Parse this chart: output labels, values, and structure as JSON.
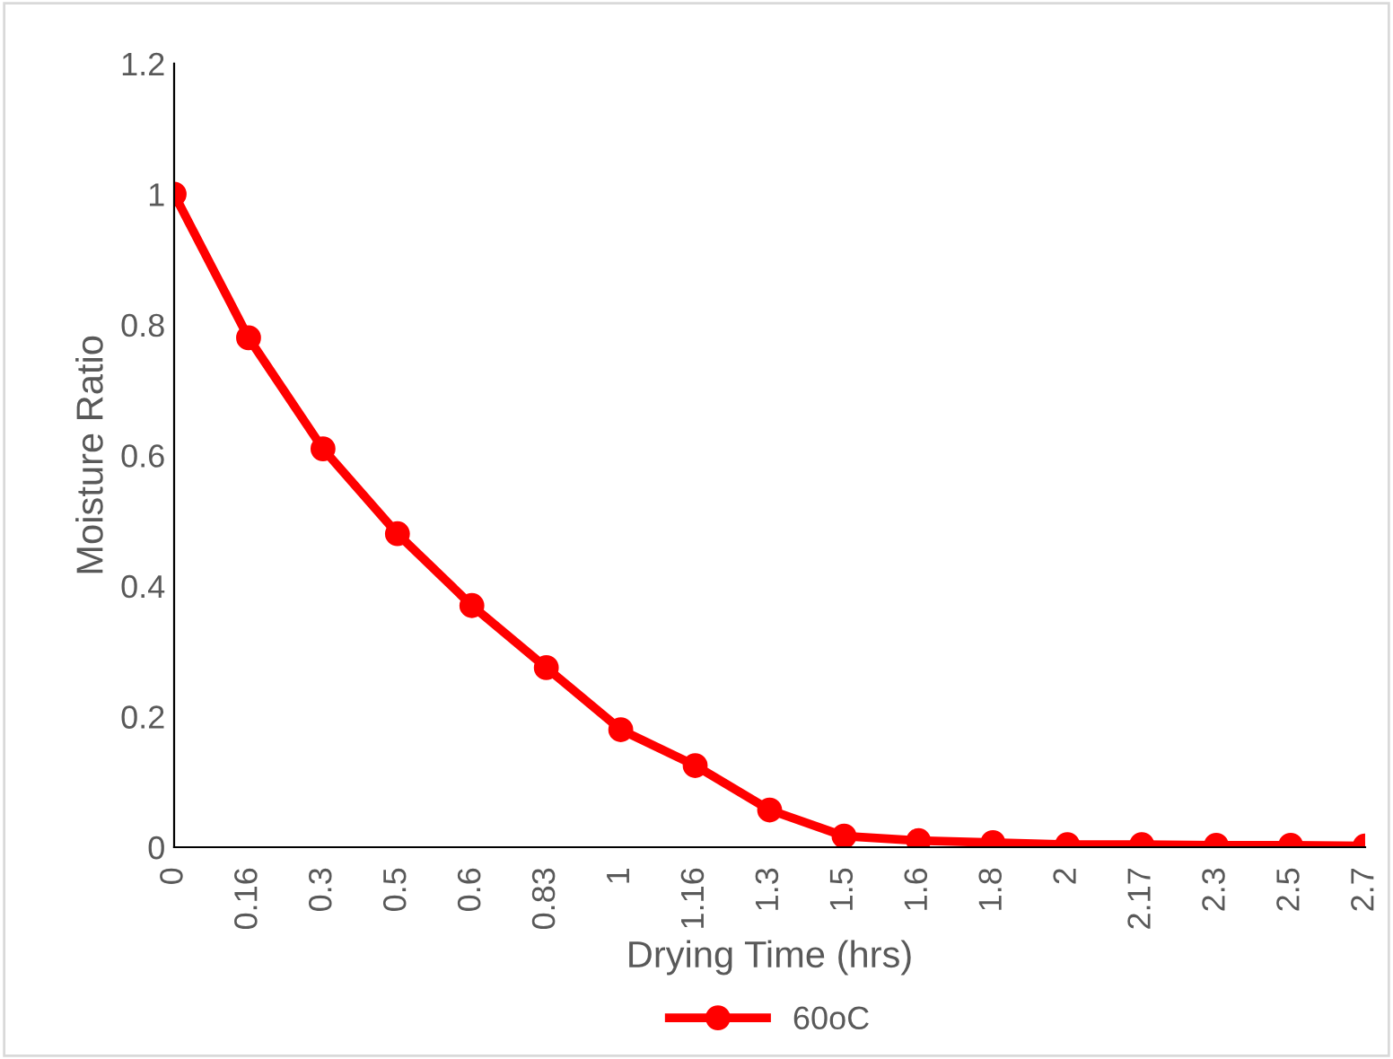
{
  "chart_data": {
    "type": "line",
    "xlabel": "Drying Time (hrs)",
    "ylabel": "Moisture Ratio",
    "categories": [
      "0",
      "0.16",
      "0.3",
      "0.5",
      "0.6",
      "0.83",
      "1",
      "1.16",
      "1.3",
      "1.5",
      "1.6",
      "1.8",
      "2",
      "2.17",
      "2.3",
      "2.5",
      "2.7"
    ],
    "series": [
      {
        "name": "60oC",
        "color": "#ff0000",
        "values": [
          1.0,
          0.78,
          0.61,
          0.48,
          0.37,
          0.275,
          0.18,
          0.125,
          0.057,
          0.017,
          0.01,
          0.007,
          0.004,
          0.004,
          0.003,
          0.003,
          0.002
        ]
      }
    ],
    "ylim": [
      0,
      1.2
    ],
    "yticks": [
      {
        "value": 0,
        "label": "0"
      },
      0.2,
      0.4,
      0.6,
      0.8,
      {
        "value": 1,
        "label": "1"
      },
      1.2
    ],
    "grid": false,
    "legend": "bottom",
    "marker": "circle",
    "line_style": "solid"
  }
}
